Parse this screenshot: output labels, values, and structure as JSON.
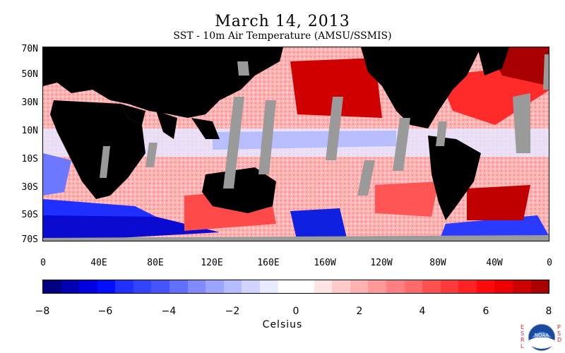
{
  "header": {
    "title": "March 14, 2013",
    "subtitle": "SST - 10m Air Temperature (AMSU/SSMIS)"
  },
  "map": {
    "lat_labels": [
      "70N",
      "50N",
      "30N",
      "10N",
      "10S",
      "30S",
      "50S",
      "70S"
    ],
    "lon_labels": [
      "0",
      "40E",
      "80E",
      "120E",
      "160E",
      "160W",
      "120W",
      "80W",
      "40W",
      "0"
    ]
  },
  "colorbar": {
    "title": "Celsius",
    "ticks": [
      "−8",
      "−6",
      "−4",
      "−2",
      "0",
      "2",
      "4",
      "6",
      "8"
    ],
    "range": [
      -8,
      8
    ],
    "colors": [
      "#000080",
      "#0000b0",
      "#0000e0",
      "#0010ff",
      "#2030ff",
      "#3344ff",
      "#4455ff",
      "#6070ff",
      "#7f8bff",
      "#9ba4ff",
      "#b5bcff",
      "#d0d4ff",
      "#e8eaff",
      "#ffffff",
      "#ffffff",
      "#ffe4e4",
      "#ffcaca",
      "#ffb0b0",
      "#ff9898",
      "#ff8080",
      "#ff6a6a",
      "#ff5050",
      "#ff3a3a",
      "#ff2222",
      "#ff0a0a",
      "#ee0000",
      "#cc0000",
      "#aa0000"
    ]
  },
  "logo": {
    "left_text": "ESRL",
    "right_text": "PSD",
    "emblem": "noaa-emblem",
    "emblem_text": "NOAA"
  }
}
